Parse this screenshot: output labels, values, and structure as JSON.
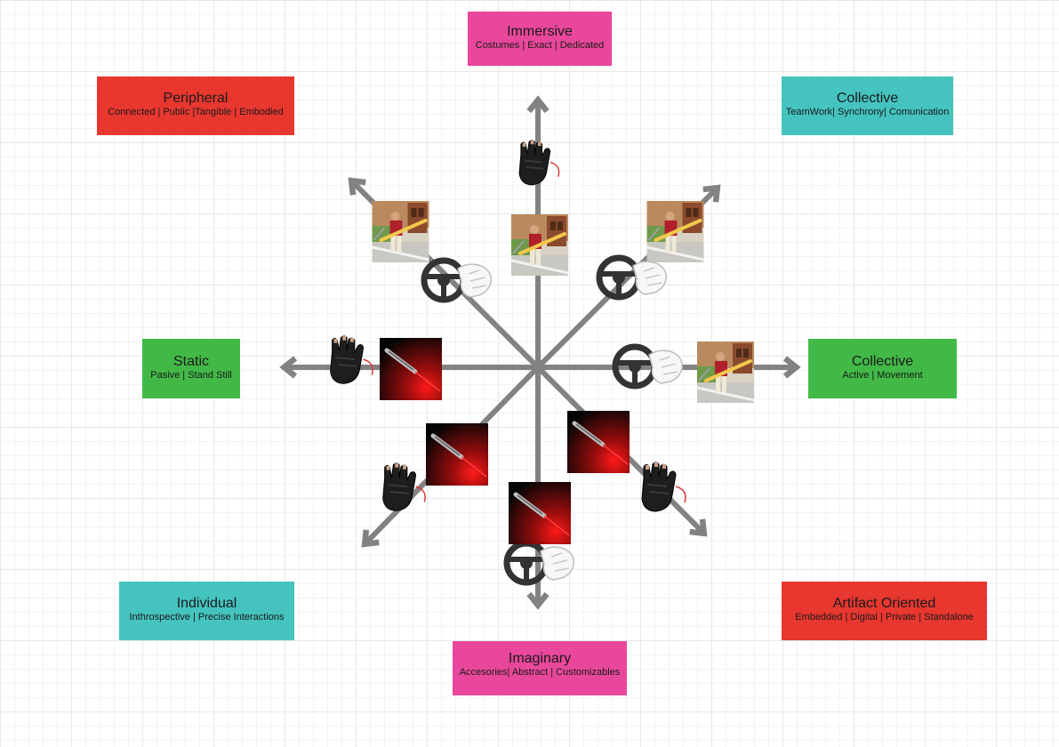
{
  "colors": {
    "pink": "#e8479b",
    "red": "#e8372f",
    "teal": "#45c3bf",
    "green": "#42b947",
    "arrow": "#828282"
  },
  "boxes": {
    "immersive": {
      "title": "Immersive",
      "sub": "Costumes | Exact | Dedicated",
      "color": "#e8479b"
    },
    "peripheral": {
      "title": "Peripheral",
      "sub": "Connected | Public  |Tangible  | Embodied",
      "color": "#e8372f"
    },
    "collective_top": {
      "title": "Collective",
      "sub": "TeamWork| Synchrony| Comunication",
      "color": "#45c3bf"
    },
    "static": {
      "title": "Static",
      "sub": "Pasive | Stand Still",
      "color": "#42b947"
    },
    "collective_right": {
      "title": "Collective",
      "sub": "Active | Movement",
      "color": "#42b947"
    },
    "individual": {
      "title": "Individual",
      "sub": "Inthrospective | Precise Interactions",
      "color": "#45c3bf"
    },
    "artifact": {
      "title": "Artifact Oriented",
      "sub": "Embedded | Digital | Private | Standalone",
      "color": "#e8372f"
    },
    "imaginary": {
      "title": "Imaginary",
      "sub": "Accesories| Abstract | Customizables",
      "color": "#e8479b"
    }
  },
  "icons": {
    "glove": "glove-icon",
    "wheel": "steering-wheel-icon",
    "laser": "laser-pointer-icon",
    "photo": "person-with-pole-photo"
  }
}
